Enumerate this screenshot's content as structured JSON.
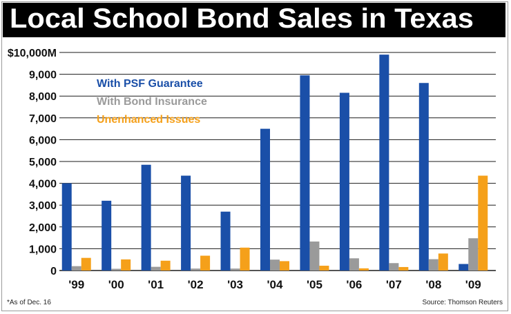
{
  "chart_data": {
    "type": "bar",
    "title": "Local School Bond Sales in Texas",
    "xlabel": "",
    "ylabel": "",
    "categories": [
      "'99",
      "'00",
      "'01",
      "'02",
      "'03",
      "'04",
      "'05",
      "'06",
      "'07",
      "'08",
      "'09"
    ],
    "ylim": [
      0,
      10000
    ],
    "y_ticks": [
      "0",
      "1,000",
      "2,000",
      "3,000",
      "4,000",
      "5,000",
      "6,000",
      "7,000",
      "8,000",
      "9,000",
      "$10,000M"
    ],
    "grid": true,
    "legend_position": "top-left",
    "series": [
      {
        "name": "With PSF Guarantee",
        "color": "#1a4fa8",
        "values": [
          4000,
          3200,
          4850,
          4350,
          2700,
          6500,
          8950,
          8150,
          9900,
          8600,
          300
        ]
      },
      {
        "name": "With Bond Insurance",
        "color": "#9a9a9a",
        "values": [
          200,
          80,
          170,
          90,
          90,
          500,
          1330,
          560,
          340,
          520,
          1480
        ]
      },
      {
        "name": "Unenhanced Issues",
        "color": "#f5a01a",
        "values": [
          580,
          510,
          450,
          680,
          1050,
          430,
          220,
          100,
          160,
          780,
          4350
        ]
      }
    ],
    "footnote": "*As of Dec. 16",
    "source": "Source: Thomson Reuters"
  }
}
